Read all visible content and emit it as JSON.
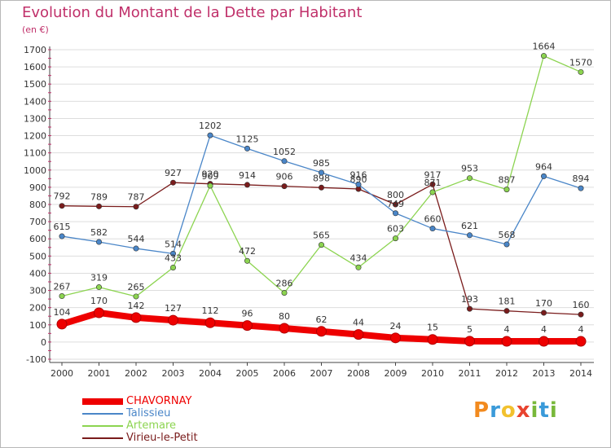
{
  "title": "Evolution du Montant de la Dette par Habitant",
  "unit": "(en €)",
  "brand": {
    "letters": [
      "P",
      "r",
      "o",
      "x",
      "i",
      "t",
      "i"
    ],
    "colors": [
      "#f28a1e",
      "#3a9ad9",
      "#f2c12e",
      "#e8432f",
      "#78b83a",
      "#3a9ad9",
      "#78b83a"
    ]
  },
  "chart_data": {
    "type": "line",
    "title": "Evolution du Montant de la Dette par Habitant",
    "ylabel": "(en €)",
    "xlabel": "",
    "x": [
      "2000",
      "2001",
      "2002",
      "2003",
      "2004",
      "2005",
      "2006",
      "2007",
      "2008",
      "2009",
      "2010",
      "2011",
      "2012",
      "2013",
      "2014"
    ],
    "yticks": [
      "-100",
      "0",
      "100",
      "200",
      "300",
      "400",
      "500",
      "600",
      "700",
      "800",
      "900",
      "1000",
      "1100",
      "1200",
      "1300",
      "1400",
      "1500",
      "1600",
      "1700"
    ],
    "ylim": [
      -100,
      1700
    ],
    "grid": true,
    "legend_position": "bottom-left",
    "series": [
      {
        "name": "Virieu-le-Petit",
        "color": "#7a1c1c",
        "values": [
          792,
          789,
          787,
          927,
          920,
          914,
          906,
          898,
          890,
          800,
          917,
          193,
          181,
          170,
          160
        ],
        "labels": [
          "792",
          "789",
          "787",
          "927",
          "920",
          "914",
          "906",
          "898",
          "890",
          "800",
          "917",
          "193",
          "181",
          "170",
          "160"
        ]
      },
      {
        "name": "Talissieu",
        "color": "#4a86c8",
        "values": [
          615,
          582,
          544,
          514,
          1202,
          1125,
          1052,
          985,
          916,
          749,
          660,
          621,
          568,
          964,
          894
        ],
        "labels": [
          "615",
          "582",
          "544",
          "514",
          "1202",
          "1125",
          "1052",
          "985",
          "916",
          "749",
          "660",
          "621",
          "568",
          "964",
          "894"
        ]
      },
      {
        "name": "Artemare",
        "color": "#8cd450",
        "values": [
          267,
          319,
          265,
          433,
          909,
          472,
          286,
          565,
          434,
          603,
          871,
          953,
          887,
          1664,
          1570
        ],
        "labels": [
          "267",
          "319",
          "265",
          "433",
          "909",
          "472",
          "286",
          "565",
          "434",
          "603",
          "871",
          "953",
          "887",
          "1664",
          "1570"
        ]
      },
      {
        "name": "CHAVORNAY",
        "color": "#ee0000",
        "values": [
          104,
          170,
          142,
          127,
          112,
          96,
          80,
          62,
          44,
          24,
          15,
          5,
          4,
          4,
          4
        ],
        "labels": [
          "104",
          "170",
          "142",
          "127",
          "112",
          "96",
          "80",
          "62",
          "44",
          "24",
          "15",
          "5",
          "4",
          "4",
          "4"
        ]
      }
    ],
    "legend": [
      "CHAVORNAY",
      "Talissieu",
      "Artemare",
      "Virieu-le-Petit"
    ]
  }
}
